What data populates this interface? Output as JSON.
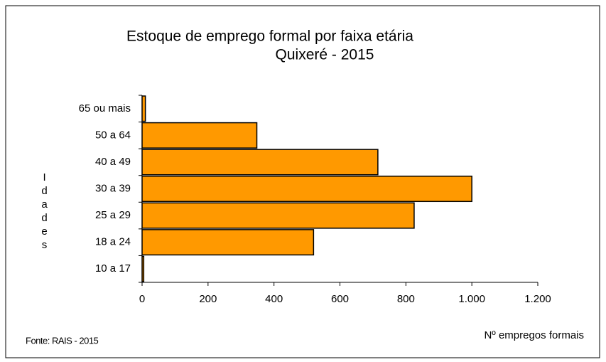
{
  "chart_data": {
    "type": "hbar",
    "title": "Estoque de emprego formal por faixa etária",
    "subtitle": "Quixeré - 2015",
    "y_label": "Idades",
    "x_label": "Nº empregos formais",
    "source": "Fonte: RAIS - 2015",
    "categories": [
      "10 a 17",
      "18 a 24",
      "25 a 29",
      "30 a 39",
      "40 a 49",
      "50 a 64",
      "65 ou mais"
    ],
    "values": [
      5,
      520,
      825,
      1000,
      715,
      348,
      10
    ],
    "color": "#ff9900",
    "xlim": [
      0,
      1200
    ],
    "xticks": [
      0,
      200,
      400,
      600,
      800,
      {
        "value": 1000,
        "label": "1.000"
      },
      {
        "value": 1200,
        "label": "1.200"
      }
    ]
  }
}
